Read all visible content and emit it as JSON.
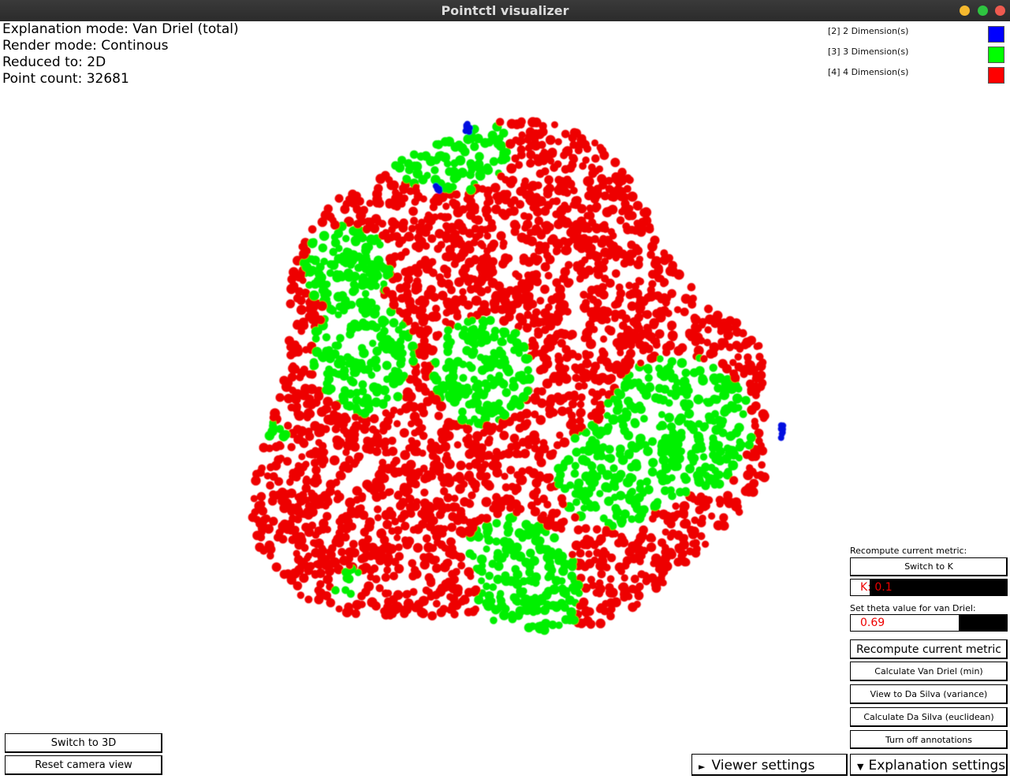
{
  "window": {
    "title": "Pointctl visualizer",
    "controls": [
      {
        "name": "minimize",
        "color": "#f5b82e"
      },
      {
        "name": "maximize",
        "color": "#2ec440"
      },
      {
        "name": "close",
        "color": "#ee5a4f"
      }
    ]
  },
  "info": {
    "explanation_mode": "Explanation mode: Van Driel (total)",
    "render_mode": "Render mode: Continous",
    "reduced_to": "Reduced to: 2D",
    "point_count": "Point count: 32681"
  },
  "legend": [
    {
      "label": "[2] 2 Dimension(s)",
      "color": "#0000ff"
    },
    {
      "label": "[3] 3 Dimension(s)",
      "color": "#00ff00"
    },
    {
      "label": "[4] 4 Dimension(s)",
      "color": "#ff0000"
    }
  ],
  "colors": {
    "red": "#ee0000",
    "green": "#00f000",
    "blue": "#0010e0"
  },
  "panel": {
    "recompute_label": "Recompute current metric:",
    "switch_k": "Switch to K",
    "k_field": "K: 0.1",
    "k_fill": 0.12,
    "theta_label": "Set theta value for van Driel:",
    "theta_field": "0.69",
    "theta_fill": 0.69,
    "recompute_button": "Recompute current metric",
    "calc_van_driel_min": "Calculate Van Driel (min)",
    "view_da_silva_var": "View to Da Silva (variance)",
    "calc_da_silva_euc": "Calculate Da Silva (euclidean)",
    "turn_off_annotations": "Turn off annotations"
  },
  "bottom": {
    "switch_3d": "Switch to 3D",
    "reset_camera": "Reset camera view",
    "viewer_settings": "Viewer settings",
    "explanation_settings": "Explanation settings"
  }
}
